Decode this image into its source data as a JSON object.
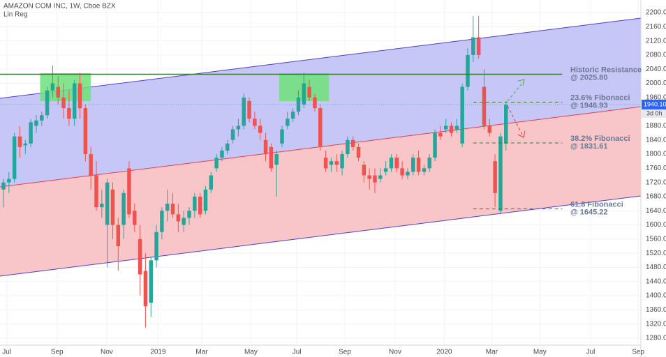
{
  "chart_data": {
    "type": "candlestick",
    "title": "AMAZON COM INC, 1W, Cboe BZX",
    "subtitle": "Lin Reg",
    "up_color": "#26a69a",
    "down_color": "#ef5350",
    "open": [
      1700,
      1720,
      1730,
      1850,
      1825,
      1830,
      1880,
      1895,
      1910,
      1980,
      1990,
      1960,
      1930,
      1900,
      2000,
      1930,
      1800,
      1740,
      1650,
      1600,
      1700,
      1600,
      1600,
      1760,
      1640,
      1560,
      1470,
      1380,
      1500,
      1580,
      1640,
      1660,
      1630,
      1600,
      1620,
      1640,
      1680,
      1640,
      1700,
      1760,
      1790,
      1810,
      1840,
      1870,
      1880,
      1950,
      1900,
      1880,
      1840,
      1820,
      1770,
      1830,
      1880,
      1900,
      1920,
      1940,
      1990,
      1960,
      1930,
      1790,
      1770,
      1780,
      1760,
      1800,
      1840,
      1820,
      1770,
      1740,
      1740,
      1730,
      1750,
      1760,
      1790,
      1760,
      1740,
      1750,
      1790,
      1750,
      1760,
      1790,
      1860,
      1870,
      1880,
      1870,
      1830,
      1990,
      2080,
      2130,
      1990,
      1880,
      1780,
      1640,
      1830
    ],
    "high": [
      1730,
      1750,
      1860,
      1880,
      1840,
      1900,
      1910,
      1920,
      1990,
      2050,
      2020,
      2000,
      1980,
      2010,
      2030,
      1940,
      1820,
      1780,
      1700,
      1730,
      1720,
      1620,
      1700,
      1780,
      1660,
      1600,
      1520,
      1510,
      1600,
      1650,
      1700,
      1690,
      1660,
      1640,
      1650,
      1690,
      1690,
      1710,
      1750,
      1800,
      1820,
      1840,
      1880,
      1900,
      1970,
      1960,
      1920,
      1900,
      1860,
      1830,
      1810,
      1880,
      1920,
      1930,
      1980,
      2030,
      2010,
      1970,
      1940,
      1810,
      1790,
      1800,
      1810,
      1850,
      1850,
      1830,
      1780,
      1760,
      1760,
      1760,
      1780,
      1800,
      1800,
      1780,
      1760,
      1800,
      1810,
      1770,
      1800,
      1870,
      1880,
      1900,
      1890,
      1900,
      2000,
      2100,
      2190,
      2190,
      2040,
      1900,
      1800,
      1860,
      1950
    ],
    "low": [
      1650,
      1690,
      1720,
      1790,
      1800,
      1820,
      1860,
      1880,
      1900,
      1960,
      1940,
      1900,
      1880,
      1880,
      1900,
      1780,
      1700,
      1640,
      1620,
      1480,
      1560,
      1470,
      1560,
      1620,
      1580,
      1400,
      1310,
      1340,
      1480,
      1560,
      1610,
      1620,
      1580,
      1580,
      1600,
      1620,
      1620,
      1630,
      1690,
      1750,
      1780,
      1800,
      1830,
      1850,
      1870,
      1890,
      1870,
      1840,
      1780,
      1750,
      1680,
      1820,
      1870,
      1890,
      1910,
      1930,
      1950,
      1920,
      1810,
      1750,
      1750,
      1750,
      1740,
      1790,
      1810,
      1780,
      1720,
      1700,
      1690,
      1720,
      1740,
      1750,
      1750,
      1730,
      1730,
      1740,
      1740,
      1740,
      1750,
      1780,
      1840,
      1860,
      1850,
      1860,
      1820,
      1980,
      2060,
      2070,
      1870,
      1850,
      1650,
      1630,
      1810
    ],
    "close": [
      1720,
      1730,
      1850,
      1820,
      1830,
      1890,
      1895,
      1910,
      1980,
      2000,
      1960,
      1930,
      1900,
      2000,
      1930,
      1800,
      1740,
      1650,
      1660,
      1720,
      1600,
      1540,
      1690,
      1630,
      1600,
      1460,
      1370,
      1500,
      1580,
      1640,
      1660,
      1630,
      1610,
      1620,
      1640,
      1680,
      1630,
      1700,
      1740,
      1790,
      1810,
      1830,
      1870,
      1880,
      1960,
      1900,
      1880,
      1860,
      1800,
      1760,
      1800,
      1870,
      1900,
      1920,
      1960,
      2000,
      1960,
      1930,
      1820,
      1760,
      1780,
      1770,
      1800,
      1840,
      1820,
      1790,
      1740,
      1730,
      1720,
      1740,
      1760,
      1790,
      1760,
      1740,
      1750,
      1790,
      1750,
      1760,
      1790,
      1860,
      1850,
      1880,
      1860,
      1880,
      1990,
      2080,
      2130,
      2080,
      1880,
      1860,
      1690,
      1850,
      1940
    ],
    "xlim": [
      -0.64,
      116.7
    ],
    "xticks": [
      {
        "value": 0.6,
        "label": "Jul"
      },
      {
        "value": 9.8,
        "label": "Sep"
      },
      {
        "value": 18.9,
        "label": "Nov"
      },
      {
        "value": 28.3,
        "label": "2019"
      },
      {
        "value": 36.3,
        "label": "Mar"
      },
      {
        "value": 45.3,
        "label": "May"
      },
      {
        "value": 53.7,
        "label": "Jul"
      },
      {
        "value": 62.5,
        "label": "Sep"
      },
      {
        "value": 71.7,
        "label": "Nov"
      },
      {
        "value": 80.7,
        "label": "2020"
      },
      {
        "value": 89.4,
        "label": "Mar"
      },
      {
        "value": 98.2,
        "label": "May"
      },
      {
        "value": 107.5,
        "label": "Jul"
      },
      {
        "value": 116.2,
        "label": "Sep"
      }
    ],
    "ylim": [
      1260.3,
      2235.5
    ],
    "yticks": [
      {
        "value": 1280,
        "label": "1280.00"
      },
      {
        "value": 1320,
        "label": "1320.00"
      },
      {
        "value": 1360,
        "label": "1360.00"
      },
      {
        "value": 1400,
        "label": "1400.00"
      },
      {
        "value": 1440,
        "label": "1440.00"
      },
      {
        "value": 1480,
        "label": "1480.00"
      },
      {
        "value": 1520,
        "label": "1520.00"
      },
      {
        "value": 1560,
        "label": "1560.00"
      },
      {
        "value": 1600,
        "label": "1600.00"
      },
      {
        "value": 1640,
        "label": "1640.00"
      },
      {
        "value": 1680,
        "label": "1680.00"
      },
      {
        "value": 1720,
        "label": "1720.00"
      },
      {
        "value": 1760,
        "label": "1760.00"
      },
      {
        "value": 1800,
        "label": "1800.00"
      },
      {
        "value": 1840,
        "label": "1840.00"
      },
      {
        "value": 1880,
        "label": "1880.00"
      },
      {
        "value": 1920,
        "label": "1920.00"
      },
      {
        "value": 1960,
        "label": "1960.00"
      },
      {
        "value": 2000,
        "label": "2000.00"
      },
      {
        "value": 2040,
        "label": "2040.00"
      },
      {
        "value": 2080,
        "label": "2080.00"
      },
      {
        "value": 2120,
        "label": "2120.00"
      },
      {
        "value": 2160,
        "label": "2160.00"
      },
      {
        "value": 2200,
        "label": "2200.00"
      }
    ],
    "grid": true,
    "channel": {
      "upper": [
        1957.7,
        2184.2
      ],
      "middle": [
        1707.5,
        1934.0
      ],
      "lower": [
        1455.3,
        1681.9
      ],
      "upper_fill": "#c6c6f7",
      "lower_fill": "#f8c6c8",
      "line_color": "#4a3fd0",
      "middle_color": "#e04050"
    },
    "zones": [
      {
        "x": [
          6.7,
          16.0
        ],
        "y": [
          1949.8,
          2028.6
        ]
      },
      {
        "x": [
          50.5,
          59.6
        ],
        "y": [
          1949.8,
          2028.6
        ]
      }
    ],
    "zone_color": "#6ee07a",
    "levels": [
      {
        "label": "Historic Resistance",
        "value_label": "@ 2025.80",
        "value": 2025.8,
        "x": [
          -0.64,
          102.3
        ],
        "style": "solid",
        "color": "#2e7d32"
      },
      {
        "label": "23.6% Fibonacci",
        "value_label": "@ 1946.93",
        "value": 1946.93,
        "x": [
          86,
          102.3
        ],
        "style": "dashed",
        "color": "#2e7d32"
      },
      {
        "label": "38.2% Fibonacci",
        "value_label": "@ 1831.61",
        "value": 1831.61,
        "x": [
          86,
          102.3
        ],
        "style": "dashed",
        "color": "#2e7d32"
      },
      {
        "label": "61.8 Fibonacci",
        "value_label": "@ 1645.22",
        "value": 1645.22,
        "x": [
          86,
          102.3
        ],
        "style": "dashed",
        "color": "#2e7d32"
      }
    ],
    "last_price": {
      "value": 1940.1,
      "label": "1940.10"
    },
    "countdown": "3d 0h"
  }
}
